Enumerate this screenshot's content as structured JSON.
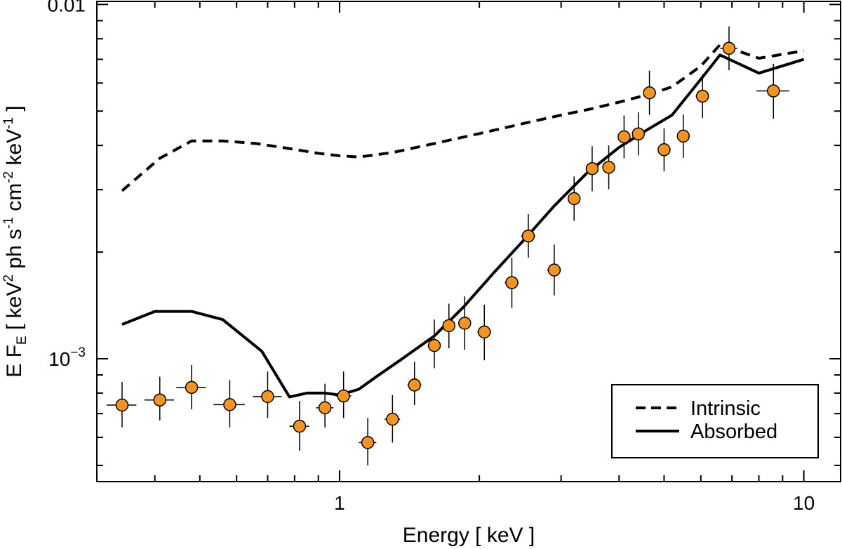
{
  "chart_data": {
    "type": "scatter",
    "x_scale": "log",
    "y_scale": "log",
    "xlim": [
      0.3,
      12.0
    ],
    "ylim": [
      0.00045,
      0.0102
    ],
    "xlabel": "Energy [ keV ]",
    "ylabel": {
      "prefix": "E F",
      "prefix_sub": "E",
      "open": " [ keV",
      "sup1": "2",
      "mid1": " ph s",
      "sup2": "-1",
      "mid2": " cm",
      "sup3": "-2",
      "mid3": " keV",
      "sup4": "-1",
      "close": " ]"
    },
    "x_tick_labels": [
      {
        "value": 1,
        "label": "1"
      },
      {
        "value": 10,
        "label": "10"
      }
    ],
    "y_tick_labels": [
      {
        "value": 0.01,
        "label": "0.01"
      },
      {
        "value": 0.001,
        "label": "10",
        "sup": "−3"
      }
    ],
    "x_major_ticks": [
      1,
      10
    ],
    "x_minor_ticks": [
      0.4,
      0.5,
      0.6,
      0.7,
      0.8,
      0.9,
      2,
      3,
      4,
      5,
      6,
      7,
      8,
      9
    ],
    "y_major_ticks": [
      0.001,
      0.01
    ],
    "y_minor_ticks": [
      0.0005,
      0.0006,
      0.0007,
      0.0008,
      0.0009,
      0.002,
      0.003,
      0.004,
      0.005,
      0.006,
      0.007,
      0.008,
      0.009
    ],
    "grid": false,
    "legend": {
      "position": "bottom-right",
      "entries": [
        {
          "label": "Intrinsic",
          "style": "dashed"
        },
        {
          "label": "Absorbed",
          "style": "solid"
        }
      ]
    },
    "series": [
      {
        "name": "Intrinsic",
        "kind": "line",
        "style": "dashed",
        "color": "#000000",
        "points": [
          [
            0.34,
            0.00298
          ],
          [
            0.41,
            0.00368
          ],
          [
            0.48,
            0.00412
          ],
          [
            0.56,
            0.00412
          ],
          [
            0.66,
            0.00405
          ],
          [
            0.78,
            0.00392
          ],
          [
            0.9,
            0.0038
          ],
          [
            1.0,
            0.00374
          ],
          [
            1.1,
            0.00371
          ],
          [
            1.3,
            0.00382
          ],
          [
            1.6,
            0.00405
          ],
          [
            2.0,
            0.00432
          ],
          [
            2.5,
            0.00462
          ],
          [
            3.0,
            0.00487
          ],
          [
            3.5,
            0.00508
          ],
          [
            4.0,
            0.0053
          ],
          [
            4.6,
            0.00556
          ],
          [
            5.2,
            0.00585
          ],
          [
            6.0,
            0.0067
          ],
          [
            6.6,
            0.0077
          ],
          [
            8.0,
            0.00705
          ],
          [
            10.0,
            0.0074
          ]
        ]
      },
      {
        "name": "Absorbed",
        "kind": "line",
        "style": "solid",
        "color": "#000000",
        "points": [
          [
            0.34,
            0.00125
          ],
          [
            0.4,
            0.00136
          ],
          [
            0.48,
            0.00136
          ],
          [
            0.56,
            0.00129
          ],
          [
            0.68,
            0.00105
          ],
          [
            0.78,
            0.00078
          ],
          [
            0.85,
            0.0008
          ],
          [
            0.93,
            0.0008
          ],
          [
            1.0,
            0.00079
          ],
          [
            1.1,
            0.00082
          ],
          [
            1.2,
            0.00089
          ],
          [
            1.35,
            0.00099
          ],
          [
            1.6,
            0.00116
          ],
          [
            1.85,
            0.0014
          ],
          [
            2.15,
            0.00175
          ],
          [
            2.5,
            0.00217
          ],
          [
            2.9,
            0.0027
          ],
          [
            3.4,
            0.00333
          ],
          [
            4.0,
            0.00395
          ],
          [
            4.6,
            0.00443
          ],
          [
            5.2,
            0.00487
          ],
          [
            6.0,
            0.00615
          ],
          [
            6.6,
            0.0072
          ],
          [
            8.0,
            0.0064
          ],
          [
            10.0,
            0.007
          ]
        ]
      },
      {
        "name": "Data",
        "kind": "points",
        "marker_fill": "#f7941d",
        "marker_edge": "#000000",
        "points": [
          {
            "x": 0.34,
            "y": 0.00074,
            "xerr": 0.025,
            "ylo": 0.00064,
            "yhi": 0.00086
          },
          {
            "x": 0.41,
            "y": 0.000765,
            "xerr": 0.03,
            "ylo": 0.00067,
            "yhi": 0.00089
          },
          {
            "x": 0.48,
            "y": 0.00083,
            "xerr": 0.035,
            "ylo": 0.00072,
            "yhi": 0.00096
          },
          {
            "x": 0.58,
            "y": 0.000742,
            "xerr": 0.045,
            "ylo": 0.00064,
            "yhi": 0.00087
          },
          {
            "x": 0.7,
            "y": 0.000782,
            "xerr": 0.05,
            "ylo": 0.00068,
            "yhi": 0.00092
          },
          {
            "x": 0.82,
            "y": 0.000645,
            "xerr": 0.04,
            "ylo": 0.00055,
            "yhi": 0.00076
          },
          {
            "x": 0.93,
            "y": 0.000727,
            "xerr": 0.04,
            "ylo": 0.00064,
            "yhi": 0.00085
          },
          {
            "x": 1.02,
            "y": 0.000785,
            "xerr": 0.04,
            "ylo": 0.00068,
            "yhi": 0.00092
          },
          {
            "x": 1.15,
            "y": 0.00058,
            "xerr": 0.05,
            "ylo": 0.0005,
            "yhi": 0.00068
          },
          {
            "x": 1.3,
            "y": 0.000675,
            "xerr": 0.05,
            "ylo": 0.00058,
            "yhi": 0.00079
          },
          {
            "x": 1.45,
            "y": 0.000843,
            "xerr": 0.05,
            "ylo": 0.00074,
            "yhi": 0.00098
          },
          {
            "x": 1.6,
            "y": 0.00109,
            "xerr": 0.05,
            "ylo": 0.00094,
            "yhi": 0.00129
          },
          {
            "x": 1.72,
            "y": 0.00124,
            "xerr": 0.05,
            "ylo": 0.00107,
            "yhi": 0.00143
          },
          {
            "x": 1.86,
            "y": 0.00126,
            "xerr": 0.06,
            "ylo": 0.00106,
            "yhi": 0.0015
          },
          {
            "x": 2.05,
            "y": 0.00119,
            "xerr": 0.07,
            "ylo": 0.00099,
            "yhi": 0.00142
          },
          {
            "x": 2.35,
            "y": 0.00164,
            "xerr": 0.08,
            "ylo": 0.00139,
            "yhi": 0.00193
          },
          {
            "x": 2.55,
            "y": 0.00222,
            "xerr": 0.09,
            "ylo": 0.00193,
            "yhi": 0.00256
          },
          {
            "x": 2.9,
            "y": 0.00178,
            "xerr": 0.1,
            "ylo": 0.00151,
            "yhi": 0.0021
          },
          {
            "x": 3.2,
            "y": 0.00283,
            "xerr": 0.1,
            "ylo": 0.00245,
            "yhi": 0.00327
          },
          {
            "x": 3.5,
            "y": 0.00344,
            "xerr": 0.1,
            "ylo": 0.00297,
            "yhi": 0.00398
          },
          {
            "x": 3.8,
            "y": 0.00347,
            "xerr": 0.1,
            "ylo": 0.00301,
            "yhi": 0.004
          },
          {
            "x": 4.1,
            "y": 0.00423,
            "xerr": 0.12,
            "ylo": 0.00368,
            "yhi": 0.00486
          },
          {
            "x": 4.4,
            "y": 0.00431,
            "xerr": 0.12,
            "ylo": 0.00375,
            "yhi": 0.00496
          },
          {
            "x": 4.65,
            "y": 0.00563,
            "xerr": 0.12,
            "ylo": 0.00488,
            "yhi": 0.0065
          },
          {
            "x": 5.0,
            "y": 0.00389,
            "xerr": 0.15,
            "ylo": 0.00338,
            "yhi": 0.00447
          },
          {
            "x": 5.5,
            "y": 0.00425,
            "xerr": 0.17,
            "ylo": 0.00369,
            "yhi": 0.00489
          },
          {
            "x": 6.05,
            "y": 0.00551,
            "xerr": 0.2,
            "ylo": 0.00478,
            "yhi": 0.00635
          },
          {
            "x": 6.9,
            "y": 0.00752,
            "xerr": 0.3,
            "ylo": 0.00652,
            "yhi": 0.00867
          },
          {
            "x": 8.6,
            "y": 0.0057,
            "xerr": 0.7,
            "ylo": 0.00476,
            "yhi": 0.0068
          }
        ]
      }
    ]
  }
}
